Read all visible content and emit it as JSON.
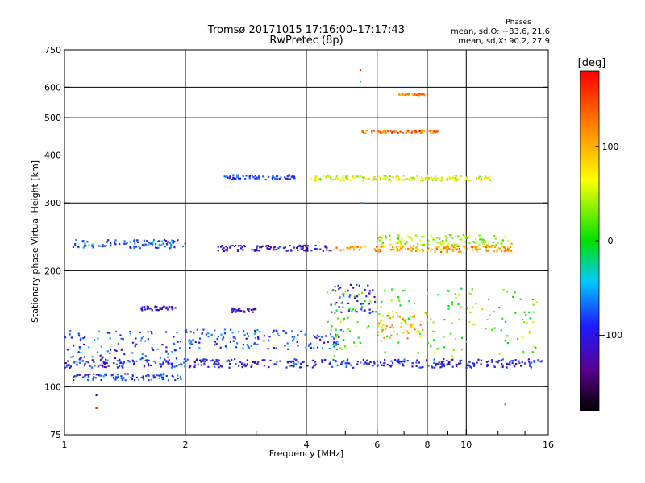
{
  "chart_data": {
    "type": "scatter",
    "title": "Tromsø 20171015 17:16:00–17:17:43",
    "subtitle": "RwPretec (8p)",
    "xlabel": "Frequency [MHz]",
    "ylabel": "Stationary phase Virtual Height [km]",
    "x_scale": "log",
    "y_scale": "log",
    "xlim": [
      1,
      16
    ],
    "ylim": [
      75,
      750
    ],
    "x_ticks": [
      1,
      2,
      4,
      6,
      8,
      10,
      16
    ],
    "x_ticks_minor": [
      3,
      5,
      7,
      9,
      12,
      14
    ],
    "y_ticks": [
      75,
      100,
      200,
      300,
      400,
      500,
      600,
      750
    ],
    "grid": true,
    "phase_stats": {
      "heading": "Phases",
      "line_o": "mean, sd,O: −83.6, 21.6",
      "line_x": "mean, sd,X:  90.2, 27.9"
    },
    "colorbar": {
      "label": "[deg]",
      "range": [
        -180,
        180
      ],
      "ticks": [
        100,
        0,
        -100
      ],
      "tick_labels": [
        "100",
        "0",
        "−100"
      ],
      "colormap": "rainbow"
    },
    "traces": [
      {
        "x_from": 1.0,
        "x_to": 15.5,
        "height": 115,
        "phase": -95,
        "jitter": 3
      },
      {
        "x_from": 1.05,
        "x_to": 1.95,
        "height": 106,
        "phase": -85,
        "jitter": 2
      },
      {
        "x_from": 1.0,
        "x_to": 1.95,
        "height": 128,
        "phase": -75,
        "jitter": 12
      },
      {
        "x_from": 1.05,
        "x_to": 2.0,
        "height": 235,
        "phase": -75,
        "jitter": 6
      },
      {
        "x_from": 2.4,
        "x_to": 4.6,
        "height": 229,
        "phase": -110,
        "jitter": 4
      },
      {
        "x_from": 4.6,
        "x_to": 13.0,
        "height": 228,
        "phase": 110,
        "jitter": 4
      },
      {
        "x_from": 6.0,
        "x_to": 13.0,
        "height": 240,
        "phase": 40,
        "jitter": 8
      },
      {
        "x_from": 2.5,
        "x_to": 3.8,
        "height": 350,
        "phase": -90,
        "jitter": 5
      },
      {
        "x_from": 4.0,
        "x_to": 11.5,
        "height": 348,
        "phase": 60,
        "jitter": 5
      },
      {
        "x_from": 5.5,
        "x_to": 8.5,
        "height": 460,
        "phase": 130,
        "jitter": 4
      },
      {
        "x_from": 6.8,
        "x_to": 8.0,
        "height": 575,
        "phase": 120,
        "jitter": 3
      },
      {
        "x_from": 2.6,
        "x_to": 3.0,
        "height": 158,
        "phase": -110,
        "jitter": 2
      },
      {
        "x_from": 1.55,
        "x_to": 1.9,
        "height": 160,
        "phase": -100,
        "jitter": 2
      },
      {
        "x_from": 2.0,
        "x_to": 5.0,
        "height": 133,
        "phase": -80,
        "jitter": 8
      },
      {
        "x_from": 4.6,
        "x_to": 6.0,
        "height": 170,
        "phase": -100,
        "jitter": 15
      },
      {
        "x_from": 6.0,
        "x_to": 8.0,
        "height": 145,
        "phase": 100,
        "jitter": 12
      },
      {
        "x_from": 4.5,
        "x_to": 15.0,
        "height": 150,
        "phase": 20,
        "jitter": 30
      }
    ],
    "isolated_points": [
      {
        "x": 5.45,
        "y": 665,
        "phase": 160
      },
      {
        "x": 5.45,
        "y": 620,
        "phase": -20
      },
      {
        "x": 1.2,
        "y": 95,
        "phase": -110
      },
      {
        "x": 1.2,
        "y": 88,
        "phase": 170
      },
      {
        "x": 12.5,
        "y": 90,
        "phase": 140
      },
      {
        "x": 5.5,
        "y": 300,
        "phase": -60
      }
    ]
  }
}
